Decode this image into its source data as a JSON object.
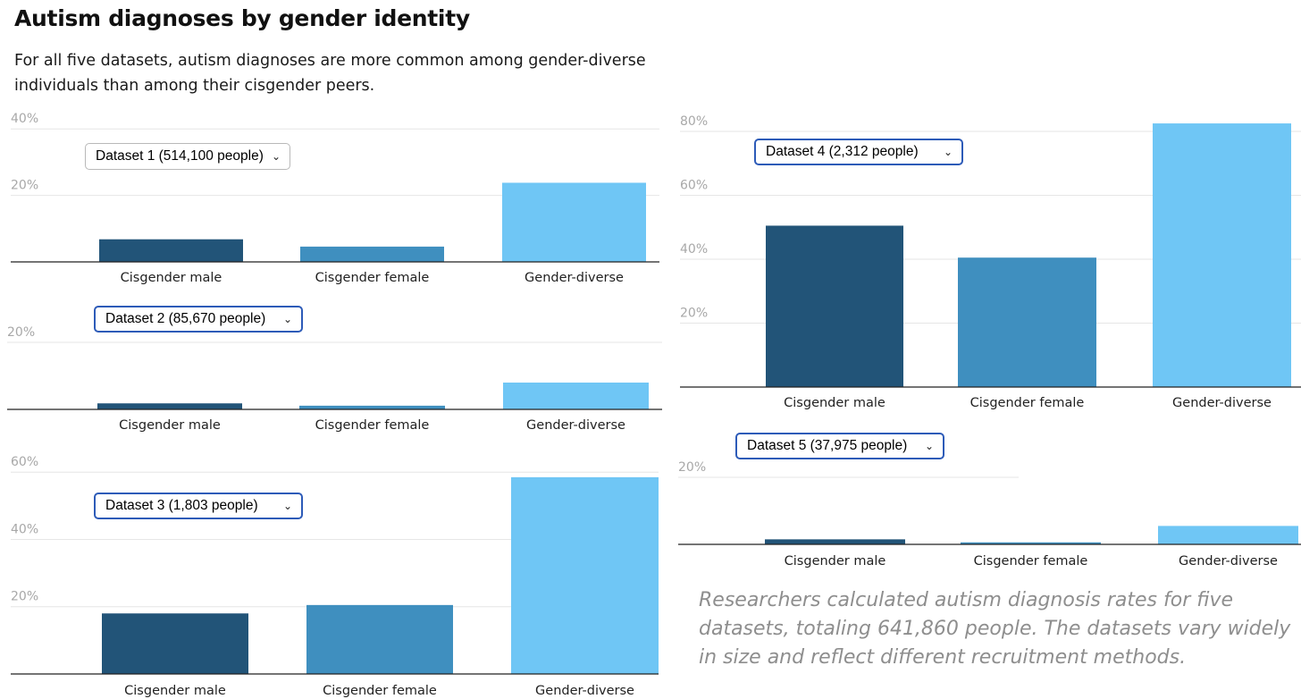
{
  "header": {
    "title": "Autism diagnoses by gender identity",
    "subtitle": "For all five datasets, autism diagnoses are more common among gender-diverse individuals than among their cisgender peers."
  },
  "note": "Researchers calculated autism diagnosis rates for five datasets, totaling 641,860 people. The datasets vary widely in size and reflect different recruitment methods.",
  "colors": {
    "cis_male": "#225478",
    "cis_female": "#3f8fbf",
    "gender_diverse": "#6fc6f5"
  },
  "icons": {
    "dropdown": "chevron-down-icon"
  },
  "chart_data": [
    {
      "type": "bar",
      "dataset": "Dataset 1 (514,100 people)",
      "categories": [
        "Cisgender male",
        "Cisgender female",
        "Gender-diverse"
      ],
      "values": [
        6.8,
        4.6,
        23.8
      ],
      "ylim": [
        0,
        40
      ],
      "ticks": [
        20,
        40
      ],
      "tick_labels": [
        "20%",
        "40%"
      ]
    },
    {
      "type": "bar",
      "dataset": "Dataset 2 (85,670 people)",
      "categories": [
        "Cisgender male",
        "Cisgender female",
        "Gender-diverse"
      ],
      "values": [
        1.8,
        1.1,
        8.0
      ],
      "ylim": [
        0,
        20
      ],
      "ticks": [
        20
      ],
      "tick_labels": [
        "20%"
      ]
    },
    {
      "type": "bar",
      "dataset": "Dataset 3 (1,803 people)",
      "categories": [
        "Cisgender male",
        "Cisgender female",
        "Gender-diverse"
      ],
      "values": [
        18,
        20.5,
        58.5
      ],
      "ylim": [
        0,
        60
      ],
      "ticks": [
        20,
        40,
        60
      ],
      "tick_labels": [
        "20%",
        "40%",
        "60%"
      ]
    },
    {
      "type": "bar",
      "dataset": "Dataset 4 (2,312 people)",
      "categories": [
        "Cisgender male",
        "Cisgender female",
        "Gender-diverse"
      ],
      "values": [
        50.5,
        40.5,
        82.5
      ],
      "ylim": [
        0,
        80
      ],
      "ticks": [
        20,
        40,
        60,
        80
      ],
      "tick_labels": [
        "20%",
        "40%",
        "60%",
        "80%"
      ]
    },
    {
      "type": "bar",
      "dataset": "Dataset 5 (37,975 people)",
      "categories": [
        "Cisgender male",
        "Cisgender female",
        "Gender-diverse"
      ],
      "values": [
        1.5,
        0.6,
        5.5
      ],
      "ylim": [
        0,
        20
      ],
      "ticks": [
        20
      ],
      "tick_labels": [
        "20%"
      ]
    }
  ]
}
